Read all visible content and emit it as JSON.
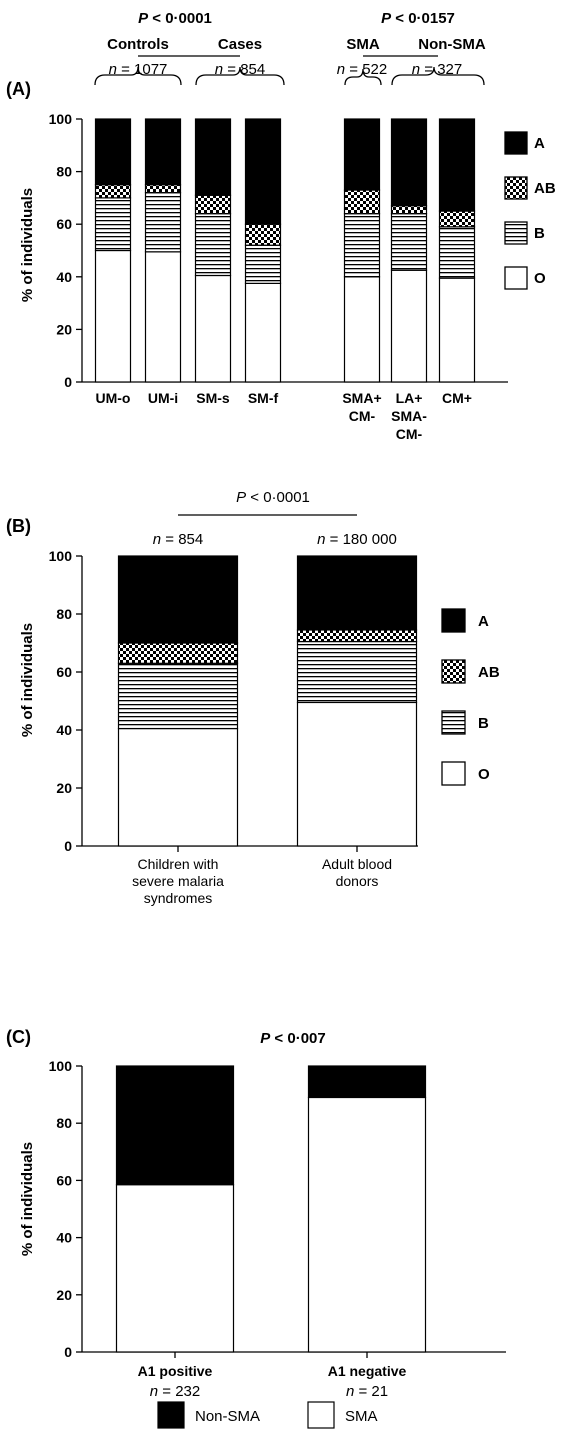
{
  "legend_ab": [
    {
      "key": "A",
      "label": "A",
      "pattern": "solid"
    },
    {
      "key": "AB",
      "label": "AB",
      "pattern": "checker"
    },
    {
      "key": "B",
      "label": "B",
      "pattern": "stripes"
    },
    {
      "key": "O",
      "label": "O",
      "pattern": "white"
    }
  ],
  "chart_data": [
    {
      "id": "A",
      "type": "bar",
      "stacked": true,
      "panel_label": "(A)",
      "ylabel": "% of individuals",
      "ylim": [
        0,
        100
      ],
      "yticks": [
        0,
        20,
        40,
        60,
        80,
        100
      ],
      "categories": [
        {
          "label": [
            "UM-o"
          ],
          "O": 50,
          "B": 20,
          "AB": 5,
          "A": 25
        },
        {
          "label": [
            "UM-i"
          ],
          "O": 49.5,
          "B": 22.5,
          "AB": 3,
          "A": 25
        },
        {
          "label": [
            "SM-s"
          ],
          "O": 40.5,
          "B": 23.5,
          "AB": 7,
          "A": 29
        },
        {
          "label": [
            "SM-f"
          ],
          "O": 37.5,
          "B": 14.5,
          "AB": 8,
          "A": 40
        },
        {
          "label": [
            "SMA+",
            "CM-"
          ],
          "O": 40,
          "B": 24,
          "AB": 9,
          "A": 27
        },
        {
          "label": [
            "LA+",
            "SMA-",
            "CM-"
          ],
          "O": 42.5,
          "B": 21.5,
          "AB": 3,
          "A": 33
        },
        {
          "label": [
            "CM+"
          ],
          "O": 39.5,
          "B": 19.5,
          "AB": 6,
          "A": 35
        }
      ],
      "annotations": {
        "p_left": {
          "p": "P",
          "rest": " < 0·0001"
        },
        "p_right": {
          "p": "P",
          "rest": " < 0·0157"
        },
        "group_controls": "Controls",
        "group_cases": "Cases",
        "group_sma": "SMA",
        "group_nonsma": "Non-SMA",
        "n_controls": "1077",
        "n_cases": "854",
        "n_sma": "522",
        "n_nonsma": "327"
      }
    },
    {
      "id": "B",
      "type": "bar",
      "stacked": true,
      "panel_label": "(B)",
      "ylabel": "% of individuals",
      "ylim": [
        0,
        100
      ],
      "yticks": [
        0,
        20,
        40,
        60,
        80,
        100
      ],
      "categories": [
        {
          "label": [
            "Children with",
            "severe malaria",
            "syndromes"
          ],
          "n": "854",
          "O": 40.5,
          "B": 22.5,
          "AB": 7,
          "A": 30
        },
        {
          "label": [
            "Adult blood",
            "donors"
          ],
          "n": "180 000",
          "O": 49.5,
          "B": 21,
          "AB": 4,
          "A": 25.5
        }
      ],
      "annotations": {
        "p": {
          "p": "P",
          "rest": " < 0·0001"
        }
      }
    },
    {
      "id": "C",
      "type": "bar",
      "stacked": true,
      "panel_label": "(C)",
      "ylabel": "% of individuals",
      "ylim": [
        0,
        100
      ],
      "yticks": [
        0,
        20,
        40,
        60,
        80,
        100
      ],
      "categories": [
        {
          "label": [
            "A1 positive"
          ],
          "n": "232",
          "SMA": 58.5,
          "Non-SMA": 41.5
        },
        {
          "label": [
            "A1 negative"
          ],
          "n": "21",
          "SMA": 89,
          "Non-SMA": 11
        }
      ],
      "annotations": {
        "p": {
          "p": "P",
          "rest": " < 0·007"
        }
      },
      "legend": [
        {
          "label": "Non-SMA",
          "pattern": "solid"
        },
        {
          "label": "SMA",
          "pattern": "white"
        }
      ]
    }
  ]
}
